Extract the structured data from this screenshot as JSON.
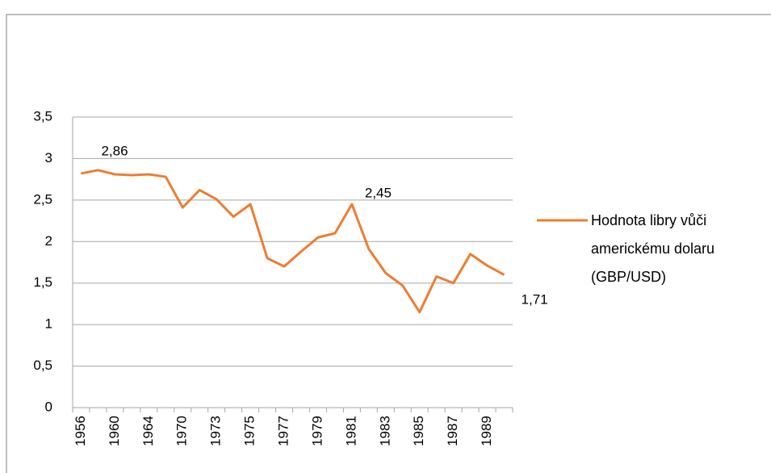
{
  "chart_data": {
    "type": "line",
    "categories": [
      "1956",
      null,
      "1960",
      null,
      "1964",
      null,
      "1970",
      null,
      "1973",
      null,
      "1975",
      null,
      "1977",
      null,
      "1979",
      null,
      "1981",
      null,
      "1983",
      null,
      "1985",
      null,
      "1987",
      null,
      "1989",
      null
    ],
    "series": [
      {
        "name": "Hodnota libry vůči americkému dolaru (GBP/USD)",
        "color": "#ed7d31",
        "values": [
          2.82,
          2.86,
          2.81,
          2.8,
          2.81,
          2.78,
          2.41,
          2.62,
          2.51,
          2.3,
          2.45,
          1.8,
          1.7,
          1.88,
          2.05,
          2.1,
          2.45,
          1.91,
          1.62,
          1.47,
          1.15,
          1.58,
          1.5,
          1.85,
          1.71,
          1.6
        ],
        "value_labels": [
          null,
          "2,86",
          null,
          null,
          null,
          null,
          null,
          null,
          null,
          null,
          null,
          null,
          null,
          null,
          null,
          null,
          "2,45",
          null,
          null,
          null,
          null,
          null,
          null,
          null,
          "1,71",
          null
        ]
      }
    ],
    "ylim": [
      0,
      3.5
    ],
    "yticks": [
      0,
      {
        "value": 0.5,
        "label": "0,5"
      },
      1,
      {
        "value": 1.5,
        "label": "1,5"
      },
      2,
      {
        "value": 2.5,
        "label": "2,5"
      },
      3,
      {
        "value": 3.5,
        "label": "3,5"
      }
    ],
    "grid": true,
    "legend": "right"
  }
}
